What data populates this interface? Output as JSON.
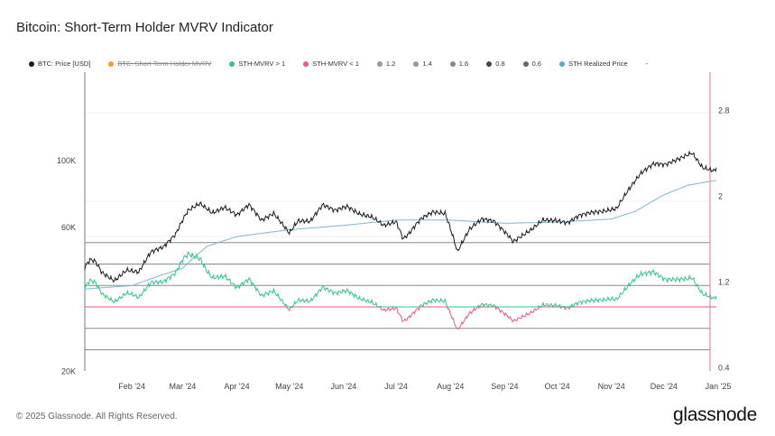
{
  "title": "Bitcoin: Short-Term Holder MVRV Indicator",
  "legend": [
    {
      "label": "BTC: Price [USD]",
      "color": "#1a1a1a",
      "struck": false
    },
    {
      "label": "BTC: Short-Term Holder MVRV",
      "color": "#f0a030",
      "struck": true
    },
    {
      "label": "STH-MVRV > 1",
      "color": "#2ec88a",
      "struck": false
    },
    {
      "label": "STH-MVRV < 1",
      "color": "#ec5a80",
      "struck": false
    },
    {
      "label": "1.2",
      "color": "#999999",
      "struck": false
    },
    {
      "label": "1.4",
      "color": "#999999",
      "struck": false
    },
    {
      "label": "1.6",
      "color": "#888888",
      "struck": false
    },
    {
      "label": "0.8",
      "color": "#444444",
      "struck": false
    },
    {
      "label": "0.6",
      "color": "#666666",
      "struck": false
    },
    {
      "label": "STH Realized Price",
      "color": "#5aa9c9",
      "struck": false
    },
    {
      "label": "-",
      "color": "",
      "struck": false
    }
  ],
  "footer": "© 2025 Glassnode. All Rights Reserved.",
  "logo": "glassnode",
  "chart_data": {
    "type": "line",
    "x_ticks": [
      {
        "label": "Feb '24",
        "date": "2024-02-01"
      },
      {
        "label": "Mar '24",
        "date": "2024-03-01"
      },
      {
        "label": "Apr '24",
        "date": "2024-04-01"
      },
      {
        "label": "May '24",
        "date": "2024-05-01"
      },
      {
        "label": "Jun '24",
        "date": "2024-06-01"
      },
      {
        "label": "Jul '24",
        "date": "2024-07-01"
      },
      {
        "label": "Aug '24",
        "date": "2024-08-01"
      },
      {
        "label": "Sep '24",
        "date": "2024-09-01"
      },
      {
        "label": "Oct '24",
        "date": "2024-10-01"
      },
      {
        "label": "Nov '24",
        "date": "2024-11-01"
      },
      {
        "label": "Dec '24",
        "date": "2024-12-01"
      },
      {
        "label": "Jan '25",
        "date": "2025-01-01"
      }
    ],
    "left_axis": {
      "scale": "log",
      "ticks": [
        {
          "label": "100K",
          "value": 100000
        },
        {
          "label": "60K",
          "value": 60000
        },
        {
          "label": "20K",
          "value": 20000
        }
      ],
      "range": [
        20000,
        160000
      ]
    },
    "right_axis": {
      "scale": "linear",
      "ticks": [
        {
          "label": "2.8",
          "value": 2.8
        },
        {
          "label": "2",
          "value": 2
        },
        {
          "label": "1.2",
          "value": 1.2
        },
        {
          "label": "0.4",
          "value": 0.4
        }
      ],
      "range": [
        0.4,
        3.2
      ],
      "color": "#e07a94"
    },
    "reference_lines": [
      1.6,
      1.4,
      1.2,
      0.8,
      0.6
    ],
    "threshold": 1.0,
    "price": {
      "name": "BTC: Price [USD]",
      "color": "#1a1a1a",
      "points": [
        [
          "2024-01-05",
          44200
        ],
        [
          "2024-01-08",
          47000
        ],
        [
          "2024-01-11",
          46400
        ],
        [
          "2024-01-15",
          42500
        ],
        [
          "2024-01-22",
          39900
        ],
        [
          "2024-01-29",
          43300
        ],
        [
          "2024-02-05",
          42700
        ],
        [
          "2024-02-12",
          49900
        ],
        [
          "2024-02-19",
          51700
        ],
        [
          "2024-02-26",
          57000
        ],
        [
          "2024-03-04",
          68300
        ],
        [
          "2024-03-11",
          72100
        ],
        [
          "2024-03-18",
          67000
        ],
        [
          "2024-03-25",
          70000
        ],
        [
          "2024-04-01",
          66000
        ],
        [
          "2024-04-08",
          71500
        ],
        [
          "2024-04-15",
          63400
        ],
        [
          "2024-04-22",
          66800
        ],
        [
          "2024-05-01",
          57500
        ],
        [
          "2024-05-06",
          63200
        ],
        [
          "2024-05-13",
          62900
        ],
        [
          "2024-05-20",
          71400
        ],
        [
          "2024-05-27",
          68500
        ],
        [
          "2024-06-03",
          70500
        ],
        [
          "2024-06-10",
          66500
        ],
        [
          "2024-06-17",
          65100
        ],
        [
          "2024-06-24",
          61000
        ],
        [
          "2024-07-01",
          62700
        ],
        [
          "2024-07-05",
          55000
        ],
        [
          "2024-07-08",
          57000
        ],
        [
          "2024-07-15",
          64100
        ],
        [
          "2024-07-22",
          67600
        ],
        [
          "2024-07-29",
          66800
        ],
        [
          "2024-08-05",
          49800
        ],
        [
          "2024-08-12",
          59300
        ],
        [
          "2024-08-19",
          64100
        ],
        [
          "2024-08-26",
          62900
        ],
        [
          "2024-09-02",
          57300
        ],
        [
          "2024-09-06",
          53900
        ],
        [
          "2024-09-16",
          58900
        ],
        [
          "2024-09-23",
          63600
        ],
        [
          "2024-09-30",
          63300
        ],
        [
          "2024-10-07",
          62200
        ],
        [
          "2024-10-14",
          66000
        ],
        [
          "2024-10-21",
          67400
        ],
        [
          "2024-10-28",
          68000
        ],
        [
          "2024-11-04",
          69400
        ],
        [
          "2024-11-11",
          80400
        ],
        [
          "2024-11-18",
          91000
        ],
        [
          "2024-11-25",
          97700
        ],
        [
          "2024-12-02",
          97200
        ],
        [
          "2024-12-09",
          101100
        ],
        [
          "2024-12-17",
          106100
        ],
        [
          "2024-12-23",
          94800
        ],
        [
          "2024-12-30",
          92500
        ],
        [
          "2024-12-31",
          95000
        ]
      ]
    },
    "sth_realized_price": {
      "name": "STH Realized Price",
      "color": "#7fb7d0",
      "points": [
        [
          "2024-01-05",
          37500
        ],
        [
          "2024-02-01",
          38500
        ],
        [
          "2024-03-01",
          44000
        ],
        [
          "2024-03-15",
          52000
        ],
        [
          "2024-04-01",
          56000
        ],
        [
          "2024-05-01",
          59000
        ],
        [
          "2024-06-01",
          61000
        ],
        [
          "2024-07-01",
          63500
        ],
        [
          "2024-08-01",
          63500
        ],
        [
          "2024-09-01",
          62000
        ],
        [
          "2024-10-01",
          62500
        ],
        [
          "2024-11-01",
          64000
        ],
        [
          "2024-11-15",
          68000
        ],
        [
          "2024-12-01",
          77000
        ],
        [
          "2024-12-15",
          83000
        ],
        [
          "2024-12-31",
          86000
        ]
      ]
    },
    "sth_mvrv_above_1": {
      "name": "STH-MVRV > 1",
      "color": "#2ec88a"
    },
    "sth_mvrv_below_1": {
      "name": "STH-MVRV < 1",
      "color": "#ec5a80"
    }
  }
}
